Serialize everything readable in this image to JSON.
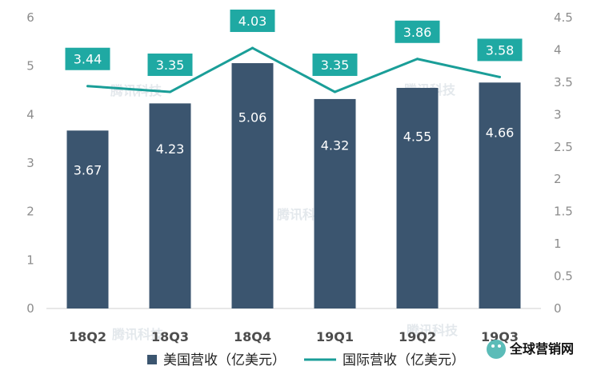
{
  "chart_data": {
    "type": "bar",
    "categories": [
      "18Q2",
      "18Q3",
      "18Q4",
      "19Q1",
      "19Q2",
      "19Q3"
    ],
    "series": [
      {
        "name": "美国营收（亿美元）",
        "type": "bar",
        "axis": "left",
        "values": [
          3.67,
          4.23,
          5.06,
          4.32,
          4.55,
          4.66
        ],
        "labels": [
          "3.67",
          "4.23",
          "5.06",
          "4.32",
          "4.55",
          "4.66"
        ],
        "color": "#3b556f"
      },
      {
        "name": "国际营收（亿美元）",
        "type": "line",
        "axis": "right",
        "values": [
          3.44,
          3.35,
          4.03,
          3.35,
          3.86,
          3.58
        ],
        "labels": [
          "3.44",
          "3.35",
          "4.03",
          "3.35",
          "3.86",
          "3.58"
        ],
        "color": "#1a9e98"
      }
    ],
    "y_left": {
      "ylim": [
        0,
        6
      ],
      "ticks": [
        "0",
        "1",
        "2",
        "3",
        "4",
        "5",
        "6"
      ]
    },
    "y_right": {
      "ylim": [
        0,
        4.5
      ],
      "ticks": [
        "0",
        "0.5",
        "1",
        "1.5",
        "2",
        "2.5",
        "3",
        "3.5",
        "4",
        "4.5"
      ]
    },
    "legend_position": "bottom",
    "grid": false
  },
  "overlay": {
    "watermark_text": "腾讯科技",
    "brand_text": "全球营销网"
  },
  "colors": {
    "bar": "#3b556f",
    "line": "#1a9e98",
    "label_box": "#1fa9a3",
    "axis": "#cfcfcf",
    "tick": "#8c8c8c"
  }
}
